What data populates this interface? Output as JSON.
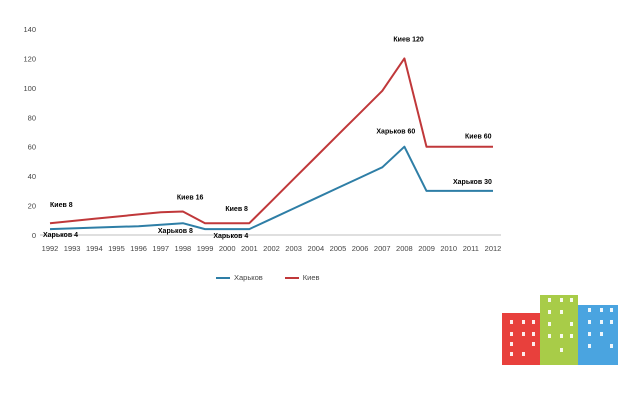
{
  "chart_data": {
    "type": "line",
    "title": "",
    "xlabel": "",
    "ylabel": "",
    "x": [
      "1992",
      "1993",
      "1994",
      "1995",
      "1996",
      "1997",
      "1998",
      "1999",
      "2000",
      "2001",
      "2002",
      "2003",
      "2004",
      "2005",
      "2006",
      "2007",
      "2008",
      "2009",
      "2010",
      "2011",
      "2012"
    ],
    "yticks": [
      "0",
      "20",
      "40",
      "60",
      "80",
      "100",
      "120",
      "140"
    ],
    "ylim": [
      0,
      140
    ],
    "grid": false,
    "legend_position": "bottom",
    "series": [
      {
        "name": "Харьков",
        "color": "#2e7ea6",
        "values": [
          4,
          4.5,
          5,
          5.5,
          6,
          7,
          8,
          4,
          4,
          4,
          11,
          18,
          25,
          32,
          39,
          46,
          60,
          30,
          30,
          30,
          30
        ]
      },
      {
        "name": "Киев",
        "color": "#c0383a",
        "values": [
          8,
          9.5,
          11,
          12.5,
          14,
          15.5,
          16,
          8,
          8,
          8,
          23,
          38,
          53,
          68,
          83,
          98,
          120,
          60,
          60,
          60,
          60
        ]
      }
    ],
    "annotations": [
      {
        "series": "Киев",
        "x": "1992",
        "text": "Киев 8"
      },
      {
        "series": "Харьков",
        "x": "1992",
        "text": "Харьков 4"
      },
      {
        "series": "Киев",
        "x": "1998",
        "text": "Киев 16"
      },
      {
        "series": "Харьков",
        "x": "1998",
        "text": "Харьков 8"
      },
      {
        "series": "Киев",
        "x": "2001",
        "text": "Киев 8"
      },
      {
        "series": "Харьков",
        "x": "2001",
        "text": "Харьков 4"
      },
      {
        "series": "Киев",
        "x": "2008",
        "text": "Киев 120"
      },
      {
        "series": "Харьков",
        "x": "2008",
        "text": "Харьков 60"
      },
      {
        "series": "Киев",
        "x": "2012",
        "text": "Киев 60"
      },
      {
        "series": "Харьков",
        "x": "2012",
        "text": "Харьков 30"
      }
    ]
  },
  "legend": {
    "items": [
      "Харьков",
      "Киев"
    ]
  },
  "colors": {
    "kharkiv": "#2e7ea6",
    "kyiv": "#c0383a",
    "logo": [
      "#e8403c",
      "#a8cc48",
      "#4aa4e0"
    ]
  }
}
